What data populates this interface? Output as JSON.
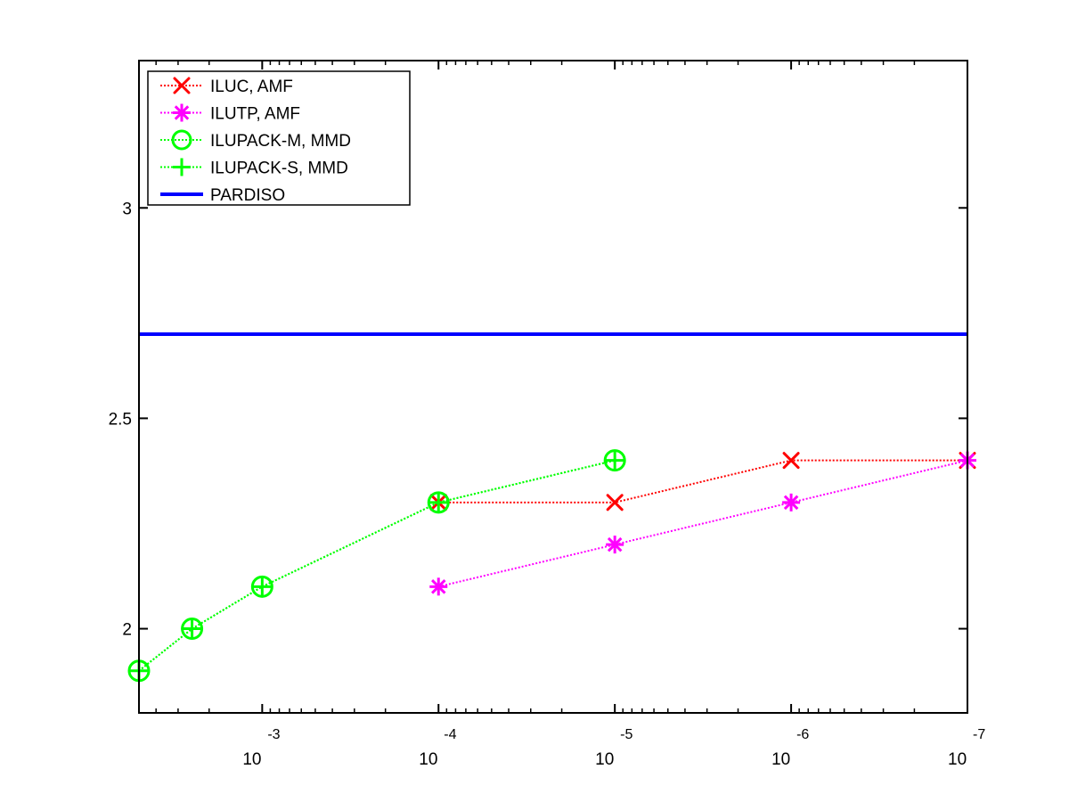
{
  "chart_data": {
    "type": "line",
    "title": "",
    "xlabel": "",
    "ylabel": "",
    "x_scale": "log",
    "x_reversed": true,
    "xlim": [
      0.005,
      1e-07
    ],
    "ylim": [
      1.8,
      3.35
    ],
    "x_ticks": [
      {
        "base": "10",
        "exp": "-3",
        "value": 0.001
      },
      {
        "base": "10",
        "exp": "-4",
        "value": 0.0001
      },
      {
        "base": "10",
        "exp": "-5",
        "value": 1e-05
      },
      {
        "base": "10",
        "exp": "-6",
        "value": 1e-06
      },
      {
        "base": "10",
        "exp": "-7",
        "value": 1e-07
      }
    ],
    "y_ticks": [
      {
        "label": "2",
        "value": 2
      },
      {
        "label": "2.5",
        "value": 2.5
      },
      {
        "label": "3",
        "value": 3
      }
    ],
    "grid": false,
    "legend_position": "top-left",
    "series": [
      {
        "name": "ILUC, AMF",
        "color": "#ff0000",
        "marker": "x",
        "line": "dotted",
        "x": [
          0.0001,
          1e-05,
          1e-06,
          1e-07
        ],
        "y": [
          2.3,
          2.3,
          2.4,
          2.4
        ]
      },
      {
        "name": "ILUTP, AMF",
        "color": "#ff00ff",
        "marker": "asterisk",
        "line": "dotted",
        "x": [
          0.0001,
          1e-05,
          1e-06,
          1e-07
        ],
        "y": [
          2.1,
          2.2,
          2.3,
          2.4
        ]
      },
      {
        "name": "ILUPACK-M, MMD",
        "color": "#00ff00",
        "marker": "circle",
        "line": "dotted",
        "x": [
          0.005,
          0.0025,
          0.001,
          0.0001,
          1e-05
        ],
        "y": [
          1.9,
          2.0,
          2.1,
          2.3,
          2.4
        ]
      },
      {
        "name": "ILUPACK-S, MMD",
        "color": "#00ff00",
        "marker": "plus",
        "line": "dotted",
        "x": [
          0.005,
          0.0025,
          0.001,
          0.0001,
          1e-05
        ],
        "y": [
          1.9,
          2.0,
          2.1,
          2.3,
          2.4
        ]
      },
      {
        "name": "PARDISO",
        "color": "#0000ff",
        "marker": "none",
        "line": "solid",
        "x": [
          0.005,
          1e-07
        ],
        "y": [
          2.7,
          2.7
        ]
      }
    ]
  }
}
